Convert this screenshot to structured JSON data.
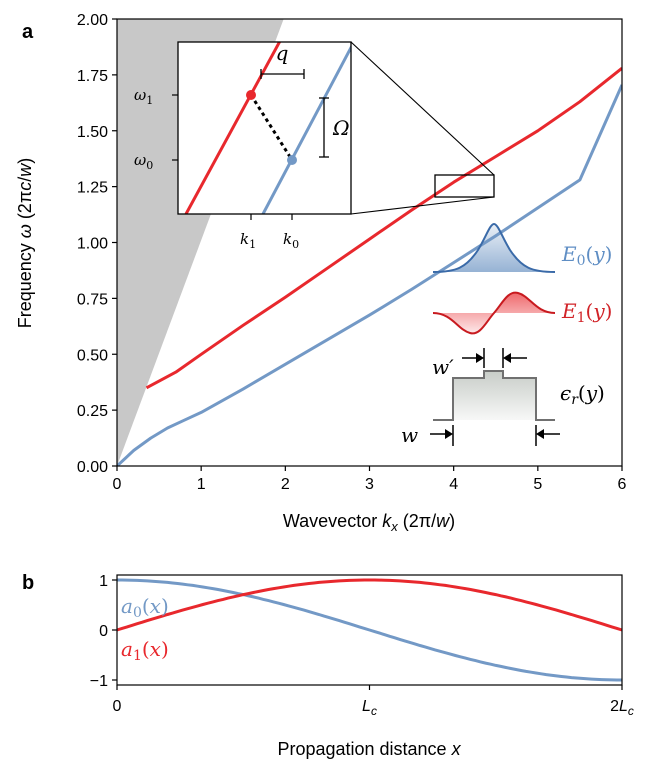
{
  "colors": {
    "blue": "#7399c6",
    "red": "#e8282d",
    "gray": "#c8c8c8",
    "dark_gray": "#707070"
  },
  "chart_data": [
    {
      "panel_label": "a",
      "type": "line",
      "xlabel": "Wavevector k_x (2π/w)",
      "ylabel": "Frequency ω (2πc/w)",
      "xlim": [
        0,
        6
      ],
      "ylim": [
        0,
        2
      ],
      "xticks": [
        0,
        1,
        2,
        3,
        4,
        5,
        6
      ],
      "xtick_labels": [
        "0",
        "1",
        "2",
        "3",
        "4",
        "5",
        "6"
      ],
      "yticks": [
        0,
        0.25,
        0.5,
        0.75,
        1.0,
        1.25,
        1.5,
        1.75,
        2.0
      ],
      "ytick_labels": [
        "0.00",
        "0.25",
        "0.50",
        "0.75",
        "1.00",
        "1.25",
        "1.50",
        "1.75",
        "2.00"
      ],
      "light_cone": {
        "x": [
          0,
          1.98
        ],
        "y": [
          0,
          2.0
        ]
      },
      "series": [
        {
          "name": "E0(y)",
          "color": "#7399c6",
          "x": [
            0,
            0.2,
            0.4,
            0.6,
            0.8,
            1.0,
            1.5,
            2.0,
            2.5,
            3.0,
            3.5,
            4.0,
            4.5,
            5.0,
            5.5,
            6.0
          ],
          "y": [
            0,
            0.07,
            0.125,
            0.17,
            0.205,
            0.24,
            0.345,
            0.455,
            0.565,
            0.675,
            0.79,
            0.91,
            1.03,
            1.155,
            1.28,
            1.705
          ]
        },
        {
          "name": "E1(y)",
          "color": "#e8282d",
          "x": [
            0.35,
            0.7,
            1.0,
            1.5,
            2.0,
            2.5,
            3.0,
            3.5,
            4.0,
            4.5,
            5.0,
            5.5,
            6.0
          ],
          "y": [
            0.35,
            0.42,
            0.5,
            0.63,
            0.755,
            0.885,
            1.015,
            1.145,
            1.27,
            1.385,
            1.5,
            1.63,
            1.78
          ]
        }
      ],
      "inset": {
        "labels": {
          "q": "q",
          "Omega": "Ω",
          "omega1": "ω1",
          "omega0": "ω0",
          "k1": "k1",
          "k0": "k0"
        }
      },
      "annotations": {
        "E0": "E0(y)",
        "E1": "E1(y)",
        "eps": "εr(y)",
        "w": "w",
        "wprime": "w′"
      }
    },
    {
      "panel_label": "b",
      "type": "line",
      "xlabel": "Propagation distance x",
      "xlim": [
        0,
        2
      ],
      "ylim": [
        -1.1,
        1.1
      ],
      "xticks": [
        0,
        1,
        2
      ],
      "xtick_labels": [
        "0",
        "Lc",
        "2Lc"
      ],
      "yticks": [
        1,
        0,
        -1
      ],
      "ytick_labels": [
        "1",
        "0",
        "−1"
      ],
      "series": [
        {
          "name": "a0(x)",
          "color": "#7399c6",
          "function": "cos(pi*x/2)",
          "x": [
            0,
            0.25,
            0.5,
            0.75,
            1.0,
            1.25,
            1.5,
            1.75,
            2.0
          ],
          "y": [
            1.0,
            0.924,
            0.707,
            0.383,
            0.0,
            -0.383,
            -0.707,
            -0.924,
            -1.0
          ]
        },
        {
          "name": "a1(x)",
          "color": "#e8282d",
          "function": "sin(pi*x/2)",
          "x": [
            0,
            0.25,
            0.5,
            0.75,
            1.0,
            1.25,
            1.5,
            1.75,
            2.0
          ],
          "y": [
            0.0,
            0.383,
            0.707,
            0.924,
            1.0,
            0.924,
            0.707,
            0.383,
            0.0
          ]
        }
      ]
    }
  ]
}
